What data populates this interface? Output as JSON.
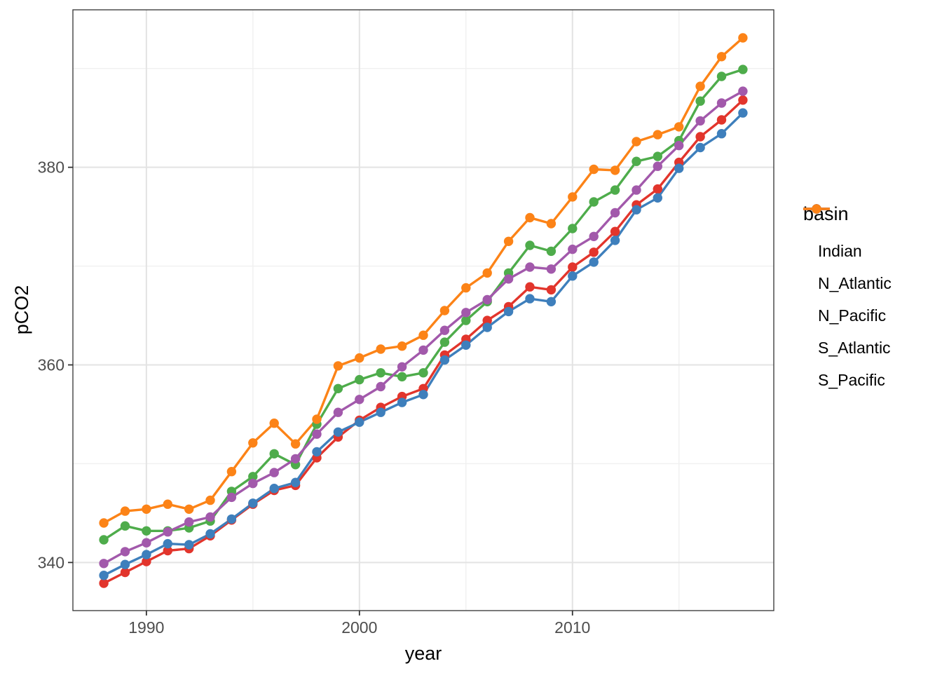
{
  "chart_data": {
    "type": "line",
    "title": "",
    "xlabel": "year",
    "ylabel": "pCO2",
    "grid": true,
    "xlim": [
      1986.55,
      2019.45
    ],
    "ylim": [
      335.13,
      395.94
    ],
    "x_ticks": {
      "major": [
        1990,
        2000,
        2010
      ],
      "minor": [
        1995,
        2005,
        2015
      ]
    },
    "y_ticks": {
      "major": [
        340,
        360,
        380
      ],
      "minor": [
        350,
        370,
        390
      ]
    },
    "legend": {
      "title": "basin",
      "position": "right"
    },
    "x": [
      1988,
      1989,
      1990,
      1991,
      1992,
      1993,
      1994,
      1995,
      1996,
      1997,
      1998,
      1999,
      2000,
      2001,
      2002,
      2003,
      2004,
      2005,
      2006,
      2007,
      2008,
      2009,
      2010,
      2011,
      2012,
      2013,
      2014,
      2015,
      2016,
      2017,
      2018
    ],
    "series": [
      {
        "name": "Indian",
        "color": "#E2352C",
        "values": [
          337.9,
          339.0,
          340.1,
          341.2,
          341.4,
          342.7,
          344.3,
          345.9,
          347.3,
          347.8,
          350.6,
          352.7,
          354.4,
          355.7,
          356.8,
          357.6,
          361.0,
          362.6,
          364.5,
          365.9,
          367.9,
          367.6,
          369.9,
          371.4,
          373.5,
          376.2,
          377.8,
          380.5,
          383.1,
          384.8,
          386.8
        ]
      },
      {
        "name": "N_Atlantic",
        "color": "#3E7FBC",
        "values": [
          338.7,
          339.8,
          340.8,
          341.9,
          341.8,
          342.9,
          344.4,
          346.0,
          347.5,
          348.1,
          351.2,
          353.2,
          354.2,
          355.2,
          356.2,
          357.0,
          360.5,
          362.0,
          363.8,
          365.4,
          366.7,
          366.4,
          369.0,
          370.4,
          372.6,
          375.7,
          376.9,
          379.9,
          382.0,
          383.4,
          385.5
        ]
      },
      {
        "name": "N_Pacific",
        "color": "#4EAC4B",
        "values": [
          342.3,
          343.7,
          343.2,
          343.2,
          343.5,
          344.2,
          347.2,
          348.7,
          351.0,
          349.9,
          354.0,
          357.6,
          358.5,
          359.2,
          358.8,
          359.2,
          362.3,
          364.5,
          366.4,
          369.3,
          372.1,
          371.5,
          373.8,
          376.5,
          377.7,
          380.6,
          381.1,
          382.7,
          386.7,
          389.2,
          389.9
        ]
      },
      {
        "name": "S_Atlantic",
        "color": "#A259AB",
        "values": [
          339.9,
          341.1,
          342.0,
          343.1,
          344.1,
          344.6,
          346.6,
          348.0,
          349.1,
          350.5,
          353.0,
          355.2,
          356.5,
          357.8,
          359.8,
          361.5,
          363.5,
          365.3,
          366.6,
          368.7,
          369.9,
          369.7,
          371.7,
          373.0,
          375.4,
          377.7,
          380.1,
          382.2,
          384.7,
          386.5,
          387.7
        ]
      },
      {
        "name": "S_Pacific",
        "color": "#FC8317",
        "values": [
          344.0,
          345.2,
          345.4,
          345.9,
          345.4,
          346.3,
          349.2,
          352.1,
          354.1,
          352.0,
          354.5,
          359.9,
          360.7,
          361.6,
          361.9,
          363.0,
          365.5,
          367.8,
          369.3,
          372.5,
          374.9,
          374.3,
          377.0,
          379.8,
          379.7,
          382.6,
          383.3,
          384.1,
          388.2,
          391.2,
          393.1
        ]
      }
    ],
    "style": {
      "panel_border_color": "#333333",
      "grid_major_color": "#e3e3e3",
      "grid_minor_color": "#f0f0f0",
      "tick_label_color": "#4d4d4d",
      "background": "#ffffff"
    }
  }
}
